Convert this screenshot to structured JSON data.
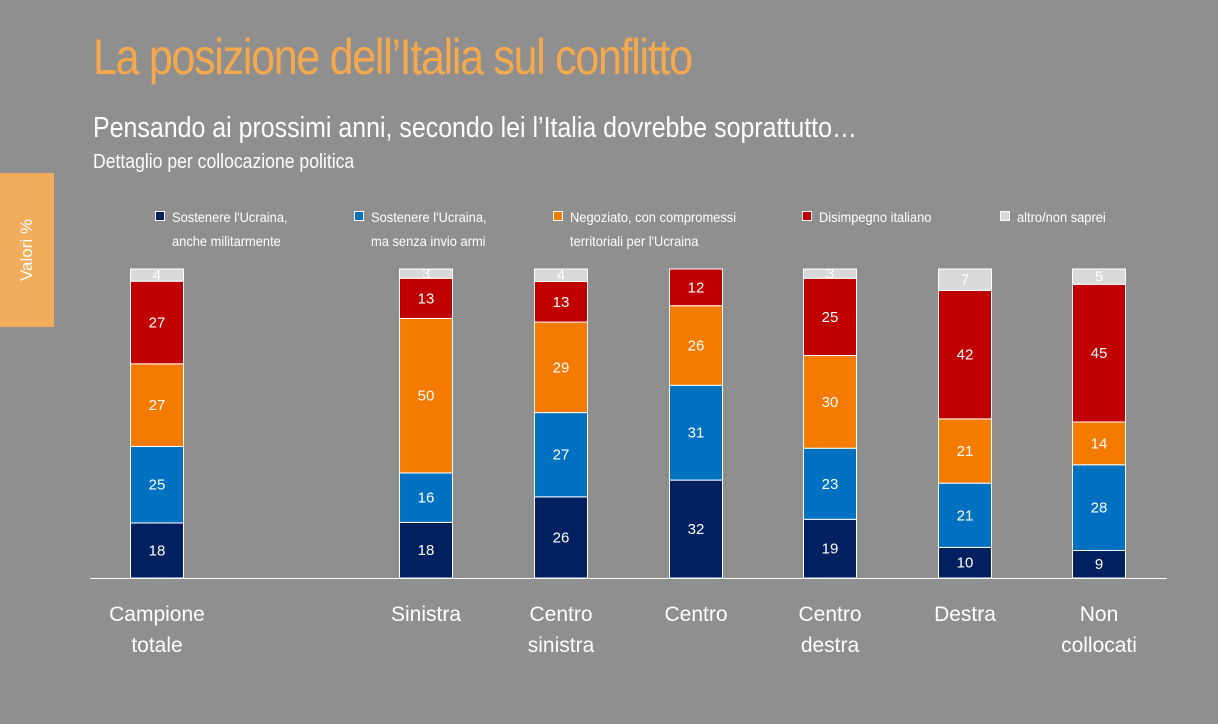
{
  "header": {
    "title": "La posizione dell’Italia sul conflitto",
    "subtitle": "Pensando ai prossimi anni, secondo lei l’Italia dovrebbe soprattutto…",
    "detail": "Dettaglio per collocazione politica",
    "side_label": "Valori %"
  },
  "chart_data": {
    "type": "bar",
    "stacked": true,
    "categories": [
      [
        "Campione",
        "totale"
      ],
      [
        "Sinistra"
      ],
      [
        "Centro",
        "sinistra"
      ],
      [
        "Centro"
      ],
      [
        "Centro",
        "destra"
      ],
      [
        "Destra"
      ],
      [
        "Non",
        "collocati"
      ]
    ],
    "series": [
      {
        "name": [
          "Sostenere l'Ucraina,",
          "anche militarmente"
        ],
        "color": "#002060",
        "values": [
          18,
          18,
          26,
          32,
          19,
          10,
          9
        ]
      },
      {
        "name": [
          "Sostenere l'Ucraina,",
          "ma senza invio armi"
        ],
        "color": "#0070c0",
        "values": [
          25,
          16,
          27,
          31,
          23,
          21,
          28
        ]
      },
      {
        "name": [
          "Negoziato, con compromessi",
          "territoriali per l'Ucraina"
        ],
        "color": "#f47a00",
        "values": [
          27,
          50,
          29,
          26,
          30,
          21,
          14
        ]
      },
      {
        "name": [
          "Disimpegno italiano"
        ],
        "color": "#c00000",
        "values": [
          27,
          13,
          13,
          12,
          25,
          42,
          45
        ]
      },
      {
        "name": [
          "altro/non saprei"
        ],
        "color": "#d9d9d9",
        "values": [
          4,
          3,
          4,
          null,
          3,
          7,
          5
        ]
      }
    ],
    "ylim": [
      0,
      100
    ],
    "legend": "top",
    "grid": false
  }
}
